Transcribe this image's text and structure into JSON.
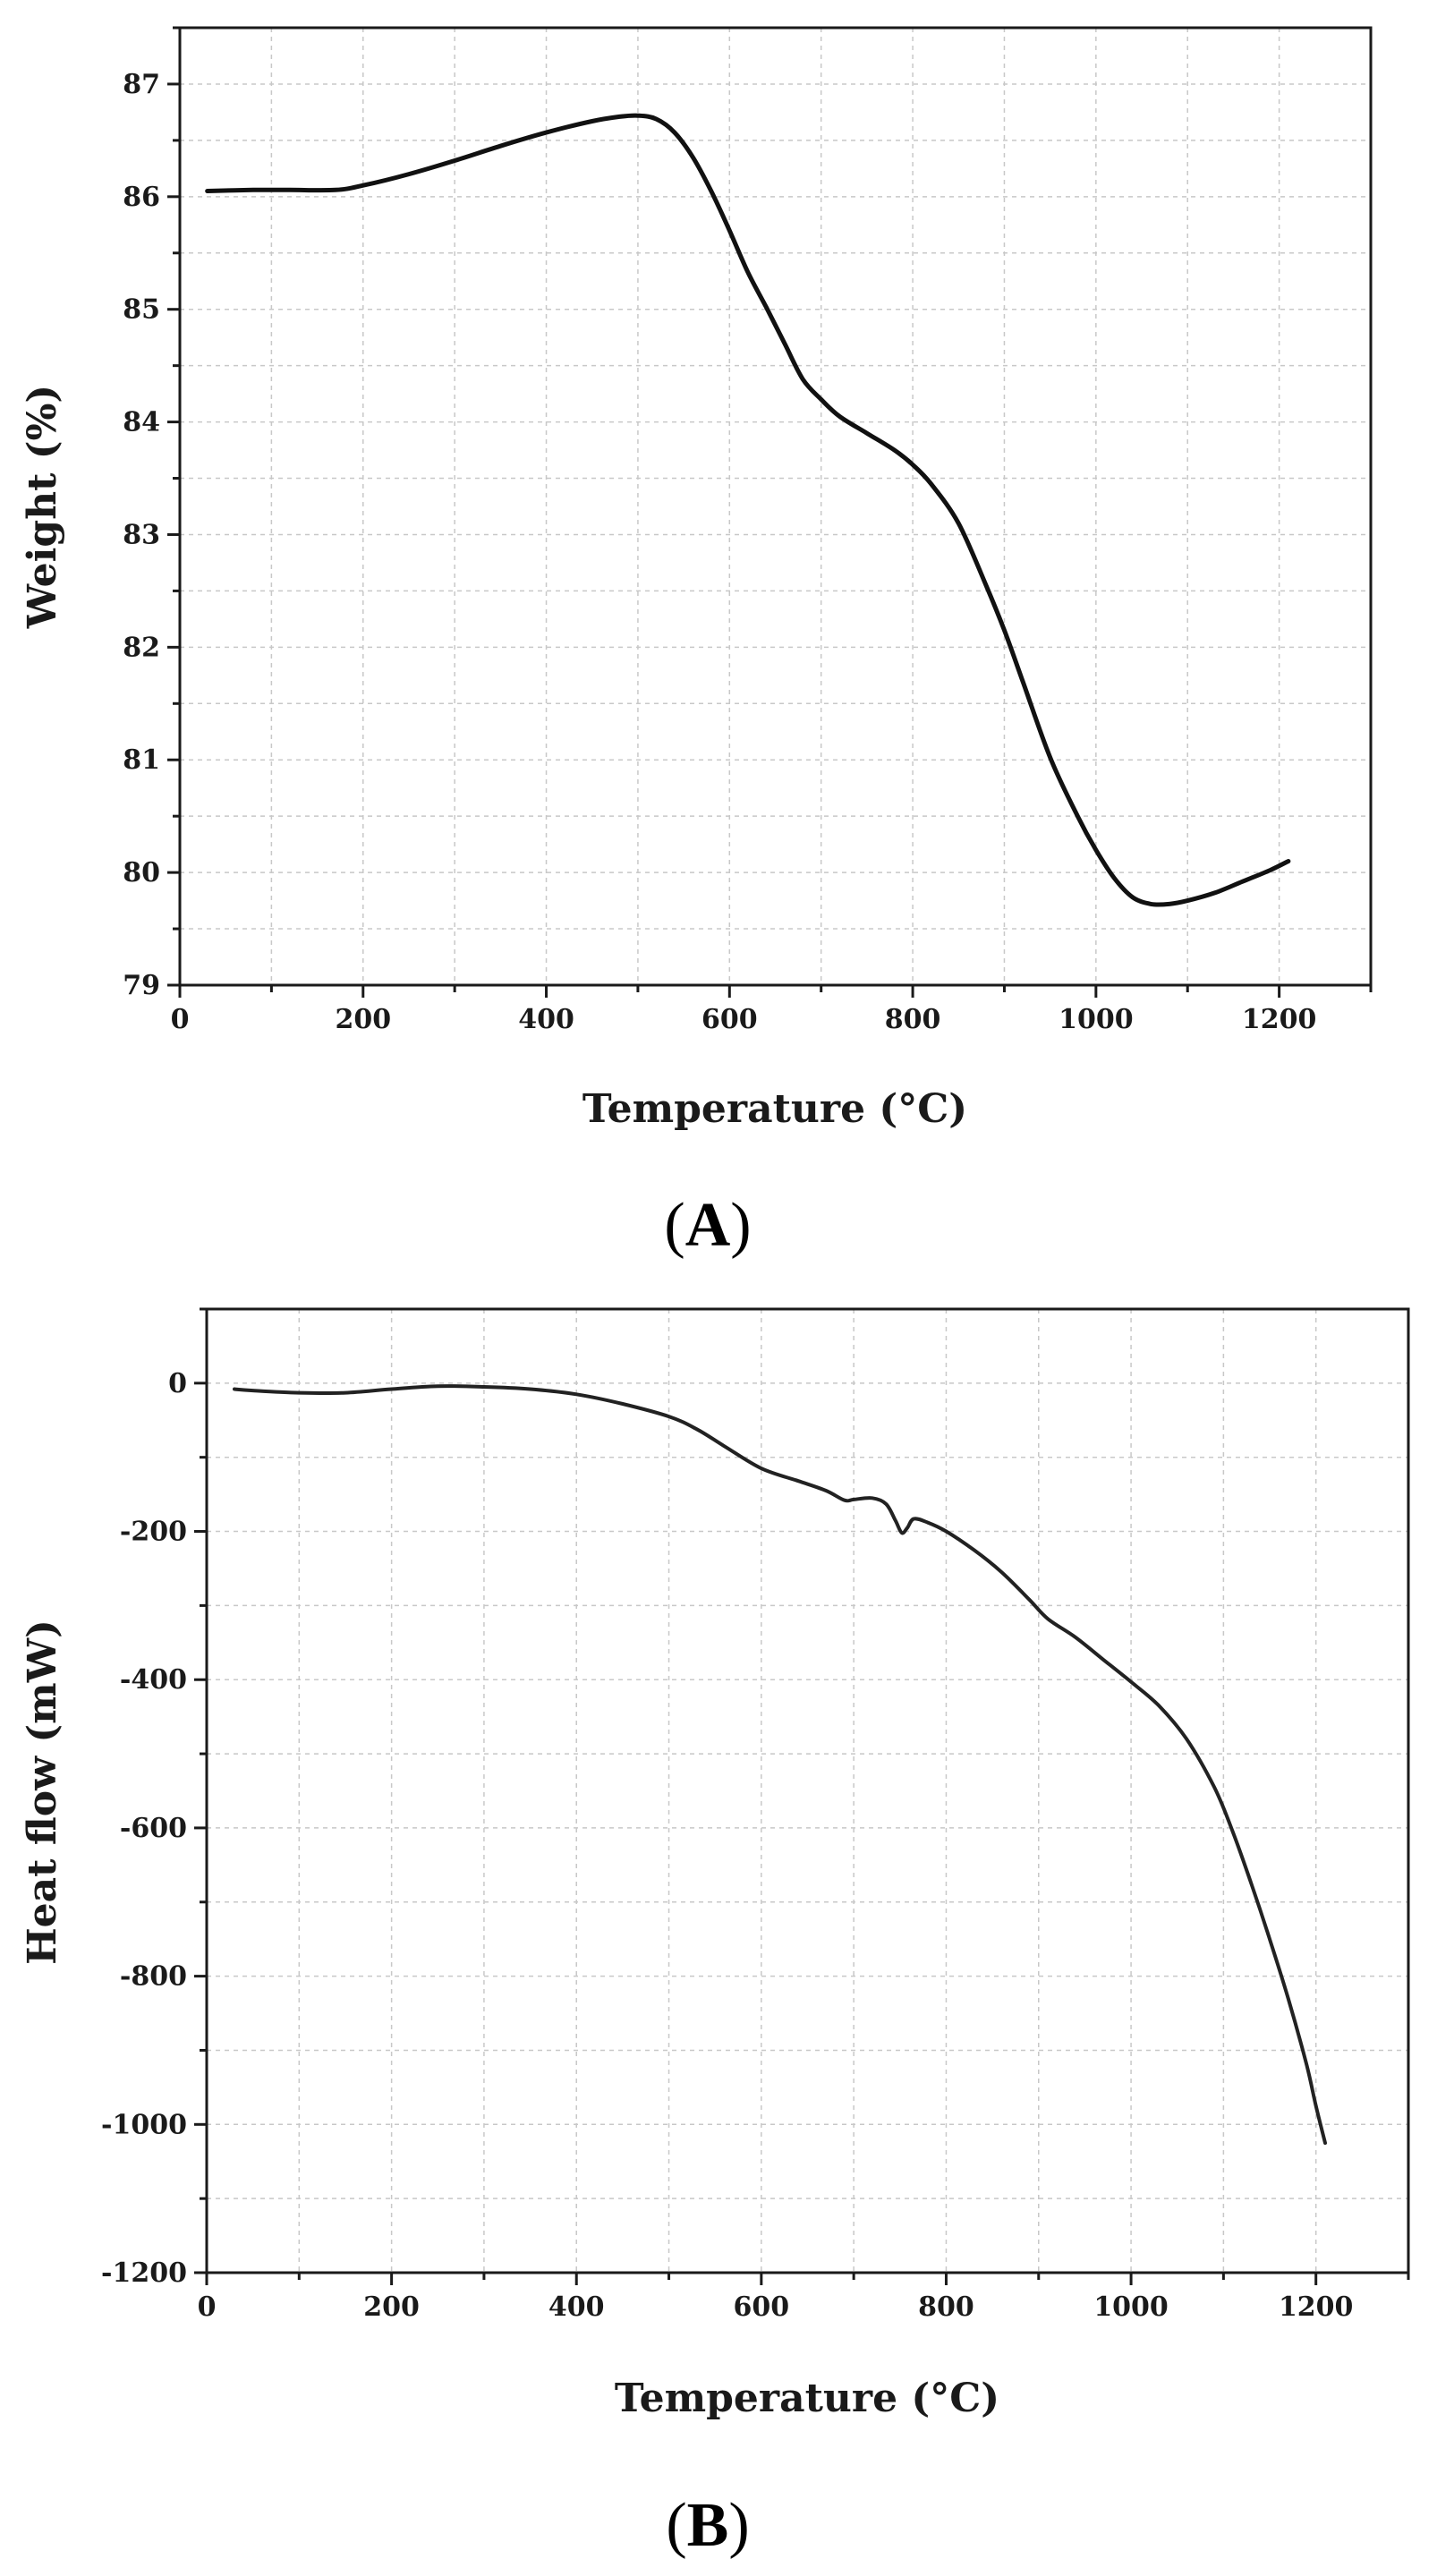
{
  "chart_data": [
    {
      "type": "line",
      "panel_label": "A",
      "title": "",
      "xlabel": "Temperature (°C)",
      "ylabel": "Weight (%)",
      "xlim": [
        0,
        1300
      ],
      "ylim": [
        79,
        87.5
      ],
      "xticks": [
        0,
        200,
        400,
        600,
        800,
        1000,
        1200
      ],
      "yticks": [
        79,
        80,
        81,
        82,
        83,
        84,
        85,
        86,
        87
      ],
      "x_minor_step": 100,
      "y_minor_step": 0.5,
      "grid": true,
      "series": [
        {
          "name": "Weight",
          "color": "#111111",
          "x": [
            30,
            80,
            120,
            170,
            200,
            250,
            300,
            350,
            400,
            450,
            480,
            500,
            520,
            540,
            560,
            580,
            600,
            620,
            640,
            660,
            680,
            700,
            720,
            750,
            780,
            800,
            820,
            850,
            880,
            900,
            920,
            950,
            980,
            1000,
            1020,
            1040,
            1060,
            1080,
            1100,
            1130,
            1160,
            1190,
            1210
          ],
          "y": [
            86.05,
            86.06,
            86.06,
            86.06,
            86.1,
            86.2,
            86.32,
            86.45,
            86.57,
            86.67,
            86.71,
            86.72,
            86.69,
            86.57,
            86.35,
            86.05,
            85.7,
            85.33,
            85.02,
            84.7,
            84.38,
            84.2,
            84.05,
            83.9,
            83.75,
            83.62,
            83.45,
            83.1,
            82.55,
            82.15,
            81.7,
            81.02,
            80.5,
            80.2,
            79.95,
            79.78,
            79.72,
            79.72,
            79.75,
            79.82,
            79.92,
            80.02,
            80.1
          ]
        }
      ]
    },
    {
      "type": "line",
      "panel_label": "B",
      "title": "",
      "xlabel": "Temperature (°C)",
      "ylabel": "Heat flow (mW)",
      "xlim": [
        0,
        1300
      ],
      "ylim": [
        -1200,
        100
      ],
      "xticks": [
        0,
        200,
        400,
        600,
        800,
        1000,
        1200
      ],
      "yticks": [
        0,
        -200,
        -400,
        -600,
        -800,
        -1000,
        -1200
      ],
      "x_minor_step": 100,
      "y_minor_step": 100,
      "grid": true,
      "series": [
        {
          "name": "Heat flow",
          "color": "#222222",
          "x": [
            30,
            50,
            100,
            150,
            200,
            250,
            300,
            350,
            400,
            450,
            500,
            530,
            560,
            600,
            640,
            670,
            690,
            700,
            720,
            735,
            745,
            752,
            758,
            765,
            780,
            800,
            830,
            860,
            890,
            910,
            940,
            970,
            1000,
            1030,
            1060,
            1090,
            1110,
            1130,
            1150,
            1170,
            1190,
            1200,
            1210
          ],
          "y": [
            -8,
            -10,
            -13,
            -13,
            -8,
            -4,
            -5,
            -8,
            -15,
            -28,
            -45,
            -62,
            -85,
            -115,
            -132,
            -145,
            -158,
            -157,
            -155,
            -163,
            -185,
            -202,
            -195,
            -183,
            -188,
            -200,
            -225,
            -255,
            -292,
            -318,
            -343,
            -373,
            -403,
            -435,
            -480,
            -545,
            -605,
            -675,
            -750,
            -830,
            -920,
            -975,
            -1025
          ]
        }
      ]
    }
  ]
}
